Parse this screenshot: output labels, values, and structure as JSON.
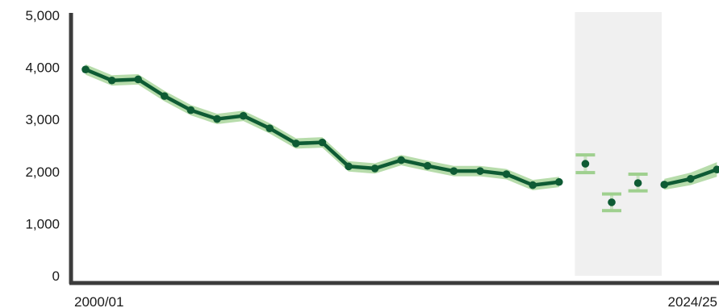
{
  "chart_data": {
    "type": "line",
    "title": "",
    "xlabel": "",
    "ylabel": "",
    "ylim": [
      0,
      5000
    ],
    "y_ticks": [
      0,
      1000,
      2000,
      3000,
      4000,
      5000
    ],
    "y_tick_labels": [
      "0",
      "1,000",
      "2,000",
      "3,000",
      "4,000",
      "5,000"
    ],
    "x_tick_labels": [
      {
        "index": 0,
        "label": "2000/01"
      },
      {
        "index": 24,
        "label": "2024/25"
      }
    ],
    "grid": false,
    "shaded_period": {
      "from_index": 18.6,
      "to_index": 21.9
    },
    "colors": {
      "line": "#0e5b34",
      "band": "#9fd08f",
      "shade": "#f0f0f0",
      "axis": "#3c3c3c"
    },
    "series": [
      {
        "values": [
          {
            "i": 0,
            "y": 3960,
            "lo": 3860,
            "hi": 4060
          },
          {
            "i": 1,
            "y": 3750,
            "lo": 3650,
            "hi": 3850
          },
          {
            "i": 2,
            "y": 3770,
            "lo": 3670,
            "hi": 3870
          },
          {
            "i": 3,
            "y": 3450,
            "lo": 3350,
            "hi": 3550
          },
          {
            "i": 4,
            "y": 3180,
            "lo": 3080,
            "hi": 3280
          },
          {
            "i": 5,
            "y": 3010,
            "lo": 2910,
            "hi": 3110
          },
          {
            "i": 6,
            "y": 3070,
            "lo": 2970,
            "hi": 3170
          },
          {
            "i": 7,
            "y": 2830,
            "lo": 2730,
            "hi": 2930
          },
          {
            "i": 8,
            "y": 2540,
            "lo": 2440,
            "hi": 2640
          },
          {
            "i": 9,
            "y": 2560,
            "lo": 2460,
            "hi": 2660
          },
          {
            "i": 10,
            "y": 2100,
            "lo": 2000,
            "hi": 2200
          },
          {
            "i": 11,
            "y": 2060,
            "lo": 1960,
            "hi": 2160
          },
          {
            "i": 12,
            "y": 2220,
            "lo": 2120,
            "hi": 2320
          },
          {
            "i": 13,
            "y": 2110,
            "lo": 2010,
            "hi": 2210
          },
          {
            "i": 14,
            "y": 2010,
            "lo": 1910,
            "hi": 2110
          },
          {
            "i": 15,
            "y": 2010,
            "lo": 1910,
            "hi": 2110
          },
          {
            "i": 16,
            "y": 1950,
            "lo": 1850,
            "hi": 2050
          },
          {
            "i": 17,
            "y": 1740,
            "lo": 1640,
            "hi": 1840
          },
          {
            "i": 18,
            "y": 1800,
            "lo": 1700,
            "hi": 1900
          }
        ]
      },
      {
        "values": [
          {
            "i": 22,
            "y": 1750,
            "lo": 1650,
            "hi": 1860
          },
          {
            "i": 23,
            "y": 1860,
            "lo": 1740,
            "hi": 1980
          },
          {
            "i": 24,
            "y": 2040,
            "lo": 1900,
            "hi": 2180
          }
        ]
      }
    ],
    "interval_points": [
      {
        "i": 19,
        "y": 2150,
        "lo": 1980,
        "hi": 2320
      },
      {
        "i": 20,
        "y": 1410,
        "lo": 1250,
        "hi": 1570
      },
      {
        "i": 21,
        "y": 1780,
        "lo": 1630,
        "hi": 1950
      }
    ]
  }
}
